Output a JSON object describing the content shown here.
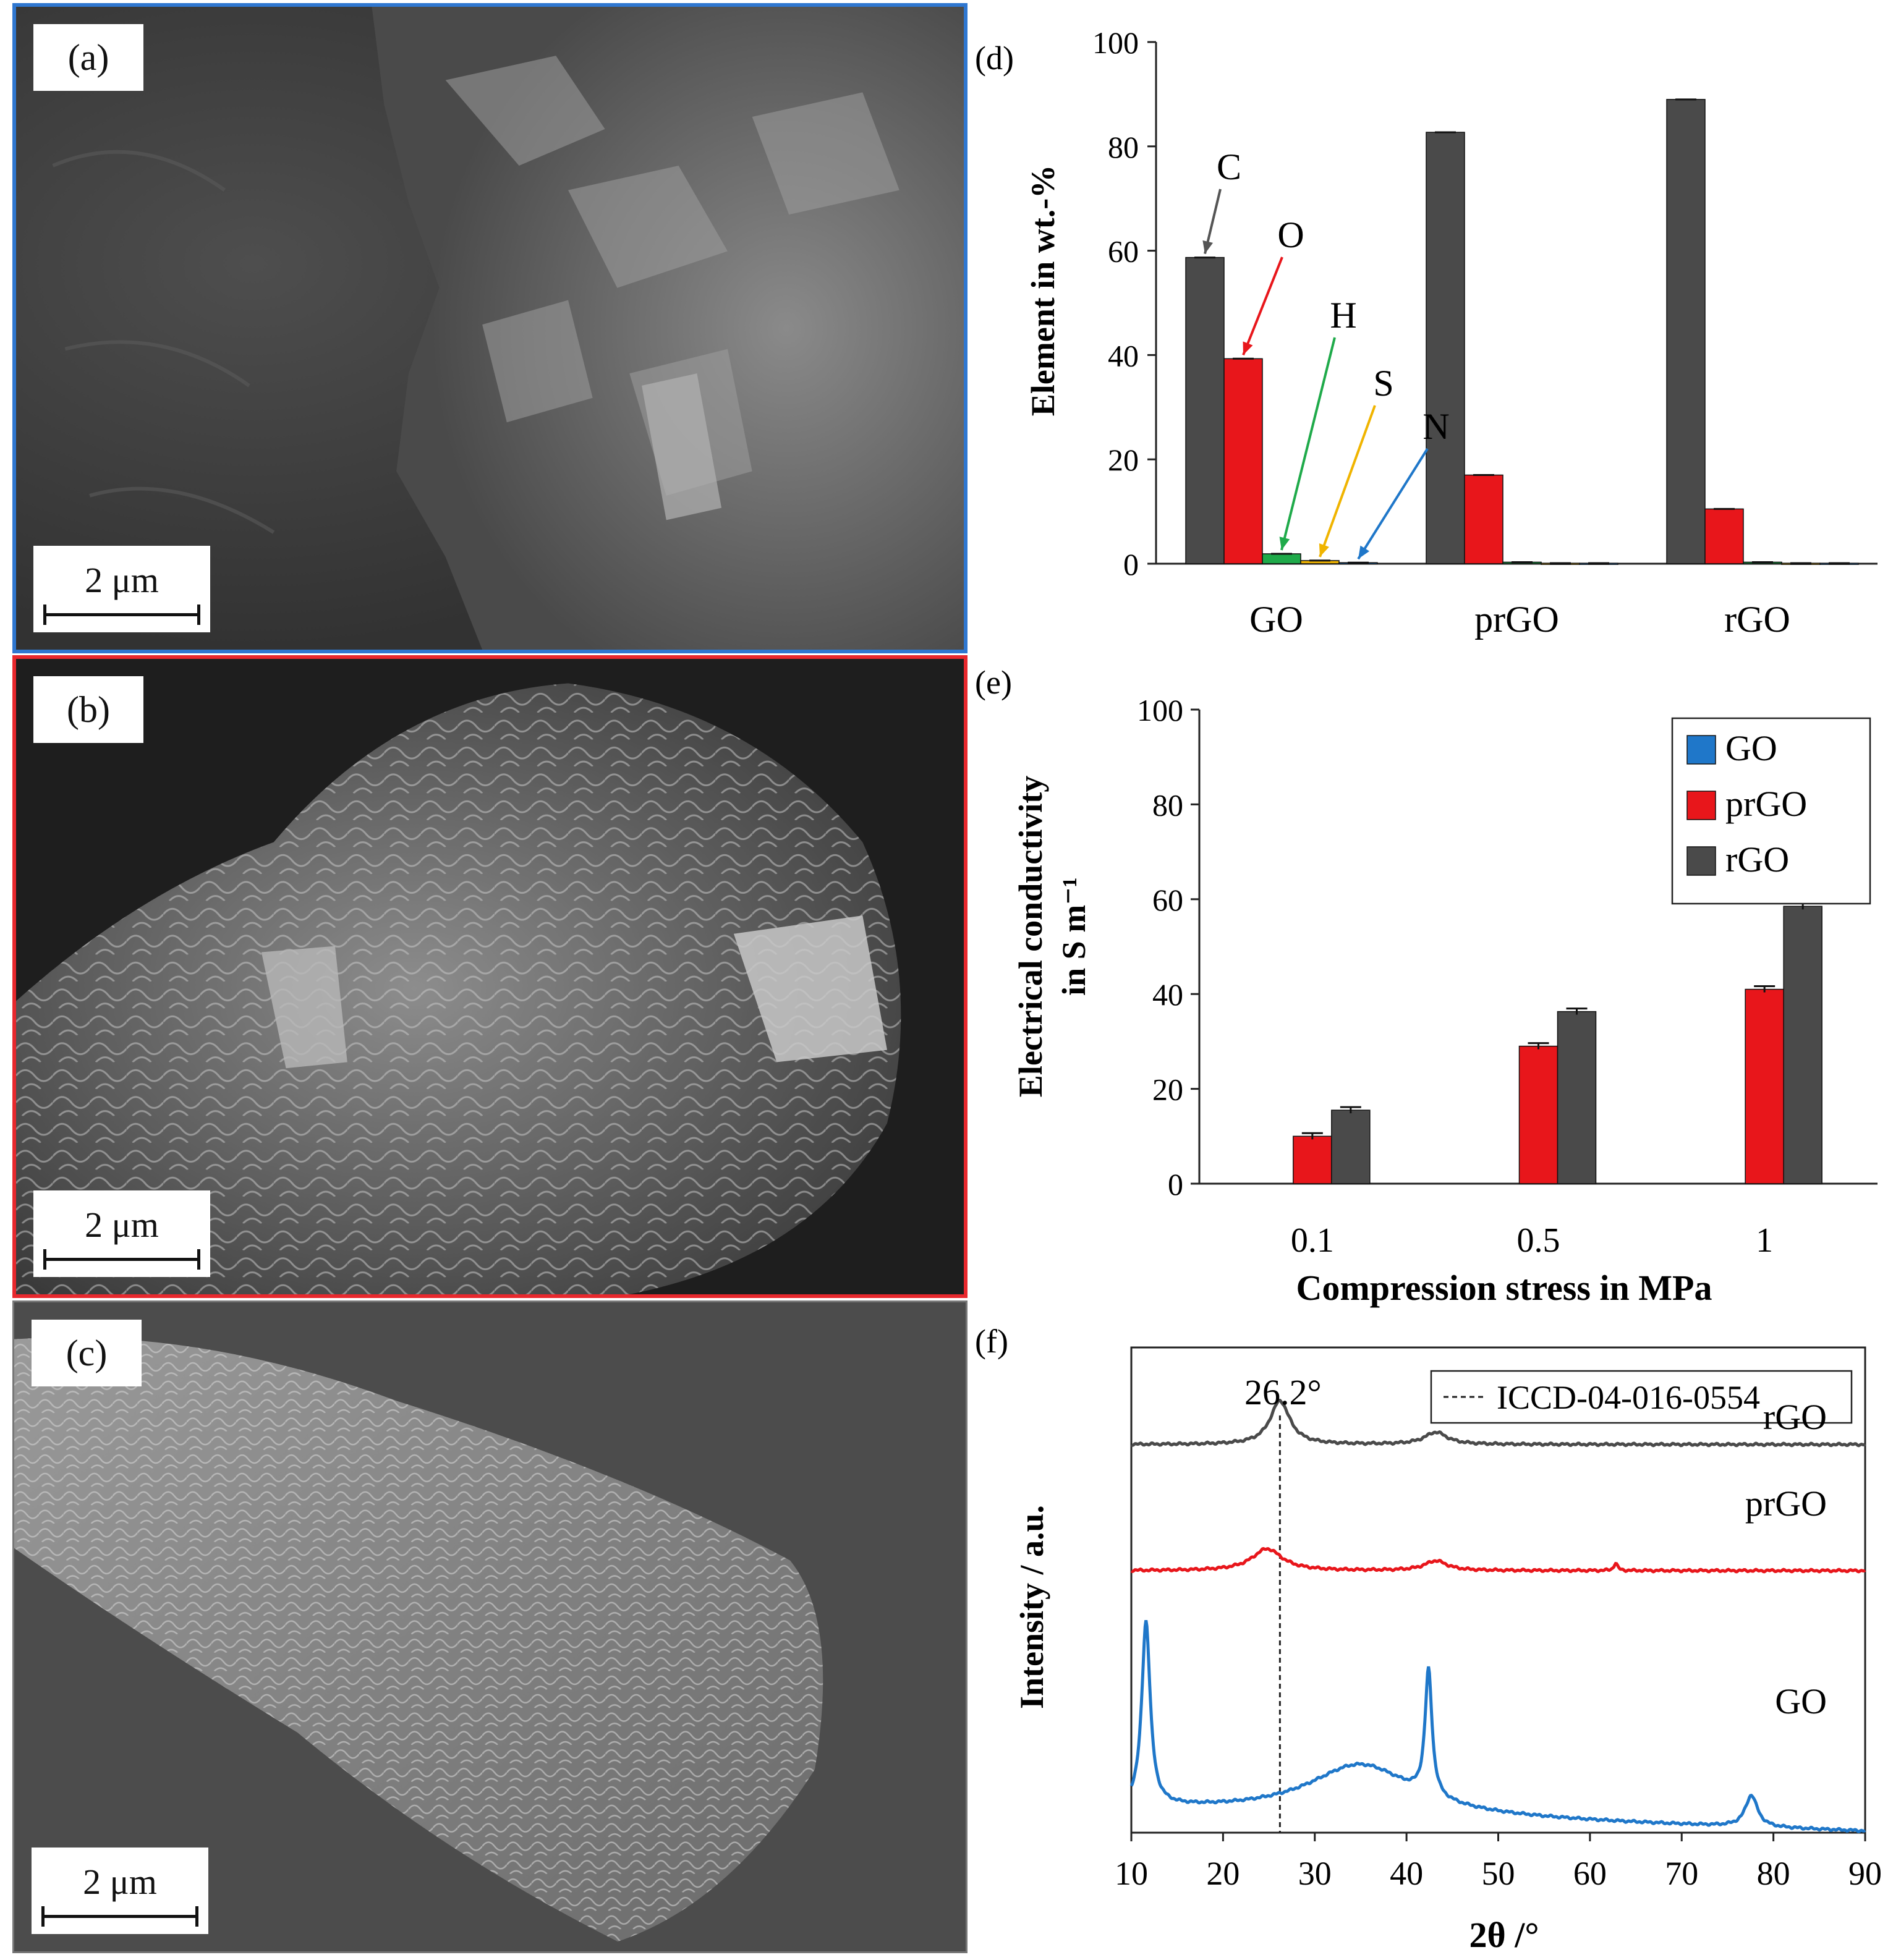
{
  "panels": {
    "a": {
      "label": "(a)",
      "scale": "2 μm",
      "frame_color": "#2f77d0"
    },
    "b": {
      "label": "(b)",
      "scale": "2 μm",
      "frame_color": "#e8282d"
    },
    "c": {
      "label": "(c)",
      "scale": "2 μm",
      "frame_color": "#777777"
    }
  },
  "colors": {
    "GO": "#1f77c9",
    "prGO": "#e8161b",
    "rGO": "#4a4a4a",
    "H": "#1faa4a",
    "S": "#f0b400",
    "N": "#1f77c9",
    "C": "#555555",
    "O": "#e8161b"
  },
  "chart_data": [
    {
      "panel": "(d)",
      "type": "bar",
      "ylabel": "Element in wt.-%",
      "ylim": [
        0,
        100
      ],
      "yticks": [
        "0",
        "20",
        "40",
        "60",
        "80",
        "100"
      ],
      "categories": [
        "GO",
        "prGO",
        "rGO"
      ],
      "series": [
        {
          "name": "C",
          "values": [
            58.7,
            82.7,
            89.0
          ]
        },
        {
          "name": "O",
          "values": [
            39.3,
            17.0,
            10.5
          ]
        },
        {
          "name": "H",
          "values": [
            1.9,
            0.3,
            0.3
          ]
        },
        {
          "name": "S",
          "values": [
            0.6,
            0.1,
            0.1
          ]
        },
        {
          "name": "N",
          "values": [
            0.2,
            0.1,
            0.1
          ]
        }
      ],
      "annotations": [
        "C",
        "O",
        "H",
        "S",
        "N"
      ]
    },
    {
      "panel": "(e)",
      "type": "bar",
      "xlabel": "Compression stress in MPa",
      "ylabel_line1": "Electrical conductivity",
      "ylabel_line2": "in S m⁻¹",
      "ylim": [
        0,
        100
      ],
      "yticks": [
        "0",
        "20",
        "40",
        "60",
        "80",
        "100"
      ],
      "categories": [
        "0.1",
        "0.5",
        "1"
      ],
      "series": [
        {
          "name": "GO",
          "values": [
            0,
            0,
            0
          ]
        },
        {
          "name": "prGO",
          "values": [
            10.0,
            29.0,
            41.0
          ]
        },
        {
          "name": "rGO",
          "values": [
            15.5,
            36.3,
            58.5
          ]
        }
      ],
      "legend": [
        "GO",
        "prGO",
        "rGO"
      ],
      "legend_position": "top-right"
    },
    {
      "panel": "(f)",
      "type": "line",
      "xlabel": "2θ /°",
      "ylabel": "Intensity / a.u.",
      "xlim": [
        10,
        90
      ],
      "xticks": [
        "10",
        "20",
        "30",
        "40",
        "50",
        "60",
        "70",
        "80",
        "90"
      ],
      "reference_line": {
        "x": 26.2,
        "label": "26.2°",
        "legend": "ICCD-04-016-0554"
      },
      "series": [
        {
          "name": "rGO",
          "offset": 0.8,
          "peaks": [
            {
              "x": 26.2,
              "h": 0.09,
              "w": 1.3
            },
            {
              "x": 43.2,
              "h": 0.025,
              "w": 1.5
            }
          ]
        },
        {
          "name": "prGO",
          "offset": 0.54,
          "peaks": [
            {
              "x": 24.8,
              "h": 0.045,
              "w": 2.0
            },
            {
              "x": 43.2,
              "h": 0.02,
              "w": 1.5
            },
            {
              "x": 62.8,
              "h": 0.015,
              "w": 0.25
            }
          ]
        },
        {
          "name": "GO",
          "offset": 0.05,
          "peaks": [
            {
              "x": 11.6,
              "h": 0.38,
              "w": 0.55
            },
            {
              "x": 35.0,
              "h": 0.105,
              "w": 7.0
            },
            {
              "x": 42.4,
              "h": 0.26,
              "w": 0.45
            },
            {
              "x": 77.6,
              "h": 0.065,
              "w": 0.8
            }
          ]
        }
      ]
    }
  ]
}
